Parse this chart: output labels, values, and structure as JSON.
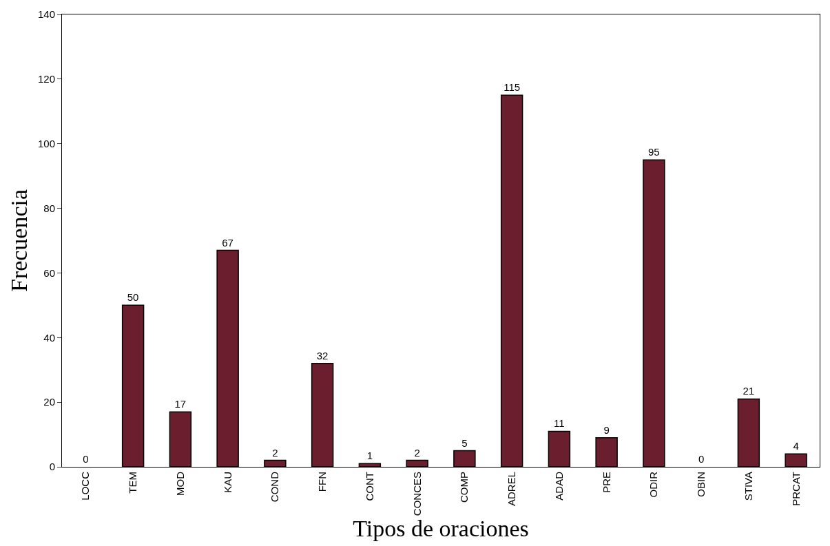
{
  "chart_data": {
    "type": "bar",
    "xlabel": "Tipos de oraciones",
    "ylabel": "Frecuencia",
    "categories": [
      "LOCC",
      "TEM",
      "MOD",
      "KAU",
      "COND",
      "FFN",
      "CONT",
      "CONCES",
      "COMP",
      "ADREL",
      "ADAD",
      "PRE",
      "ODIR",
      "OBIN",
      "STIVA",
      "PRCAT"
    ],
    "values": [
      0,
      50,
      17,
      67,
      2,
      32,
      1,
      2,
      5,
      115,
      11,
      9,
      95,
      0,
      21,
      4
    ],
    "color": "#6b1f2e",
    "ylim": [
      0,
      140
    ],
    "yticks": [
      0,
      20,
      40,
      60,
      80,
      100,
      120,
      140
    ],
    "data_labels": true
  }
}
